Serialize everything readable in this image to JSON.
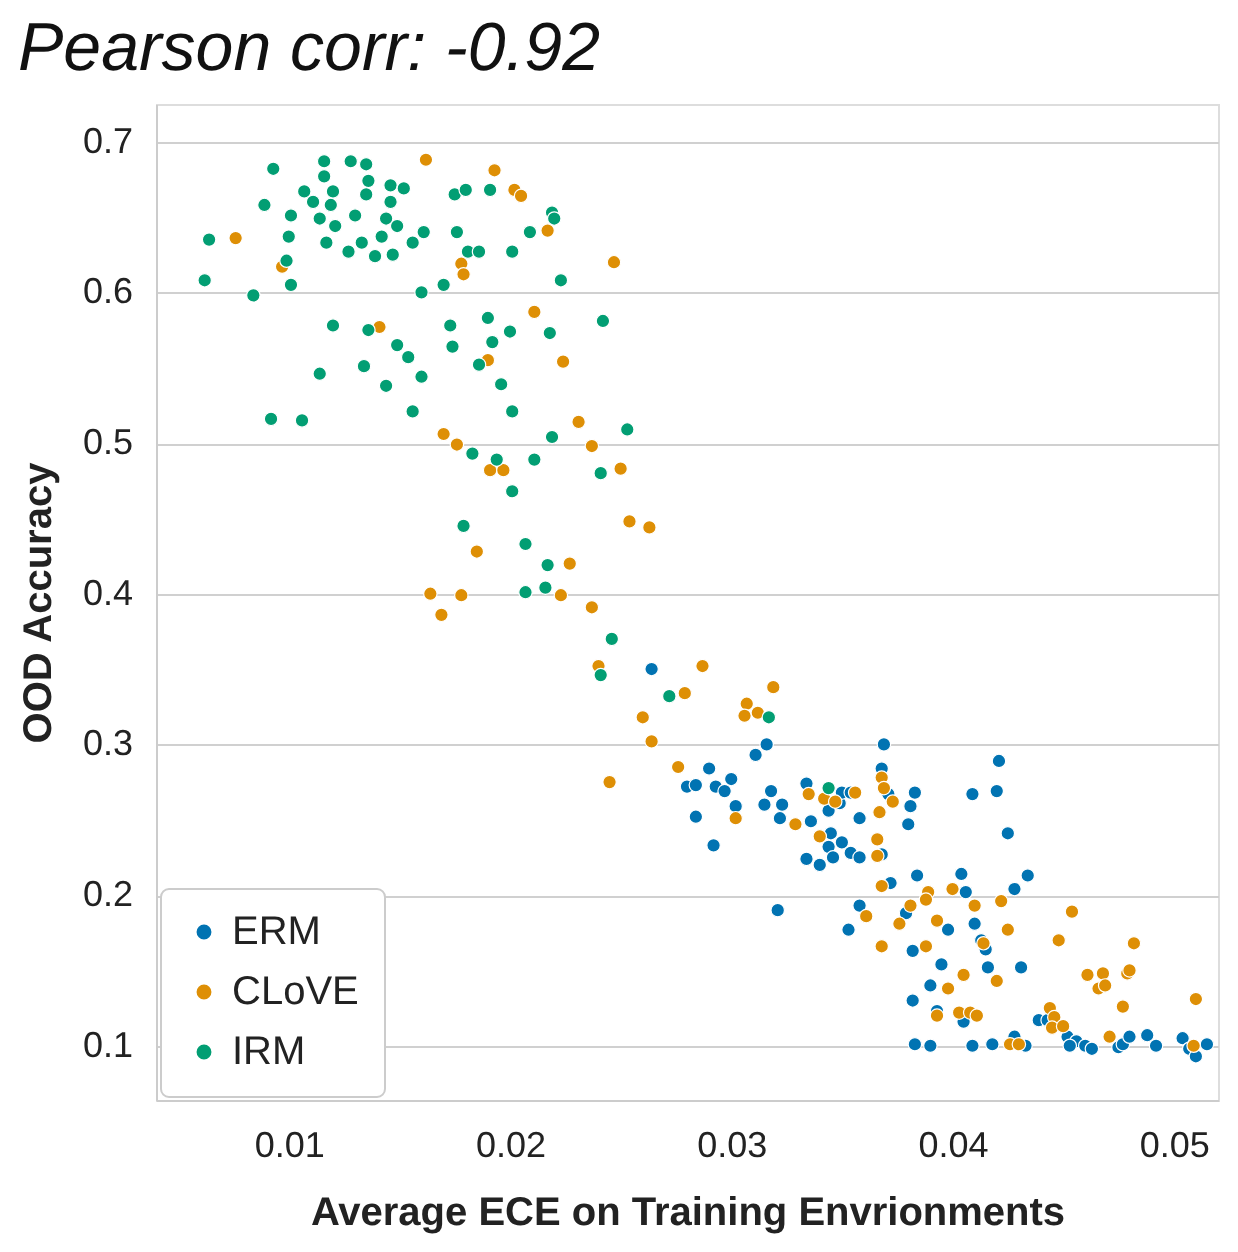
{
  "chart_data": {
    "type": "scatter",
    "title": "Pearson corr: -0.92",
    "xlabel": "Average ECE on Training Envrionments",
    "ylabel": "OOD Accuracy",
    "xlim": [
      0.004,
      0.052
    ],
    "xticks": [
      0.01,
      0.02,
      0.03,
      0.04,
      0.05
    ],
    "ylim": [
      0.064,
      0.725
    ],
    "yticks": [
      0.1,
      0.2,
      0.3,
      0.4,
      0.5,
      0.6,
      0.7
    ],
    "grid": "y",
    "legend": "bottom left",
    "marker": "circle",
    "series": [
      {
        "name": "ERM",
        "color": "#0173b2",
        "x": [
          0.0264,
          0.0316,
          0.0311,
          0.029,
          0.028,
          0.0284,
          0.0293,
          0.0297,
          0.03,
          0.0302,
          0.0284,
          0.0292,
          0.0315,
          0.0318,
          0.0323,
          0.0322,
          0.0334,
          0.0336,
          0.0344,
          0.0349,
          0.035,
          0.0354,
          0.0358,
          0.0345,
          0.0344,
          0.035,
          0.0346,
          0.0354,
          0.0358,
          0.0334,
          0.034,
          0.0321,
          0.0369,
          0.0368,
          0.0371,
          0.0383,
          0.0381,
          0.038,
          0.0368,
          0.0372,
          0.0384,
          0.0358,
          0.0353,
          0.0379,
          0.0382,
          0.0395,
          0.0398,
          0.039,
          0.0382,
          0.0393,
          0.0405,
          0.0404,
          0.0406,
          0.041,
          0.0413,
          0.0415,
          0.0416,
          0.0431,
          0.0409,
          0.042,
          0.0421,
          0.0425,
          0.0428,
          0.0434,
          0.0428,
          0.0383,
          0.039,
          0.0409,
          0.0418,
          0.0433,
          0.0439,
          0.0443,
          0.0452,
          0.0456,
          0.046,
          0.0463,
          0.0453,
          0.0475,
          0.0477,
          0.048,
          0.0488,
          0.0492,
          0.0504,
          0.0507,
          0.051,
          0.0515
        ],
        "values": [
          0.35,
          0.3,
          0.293,
          0.284,
          0.272,
          0.273,
          0.272,
          0.269,
          0.277,
          0.259,
          0.252,
          0.233,
          0.26,
          0.269,
          0.26,
          0.251,
          0.274,
          0.249,
          0.256,
          0.261,
          0.268,
          0.268,
          0.251,
          0.241,
          0.232,
          0.235,
          0.225,
          0.228,
          0.225,
          0.224,
          0.22,
          0.19,
          0.3,
          0.284,
          0.267,
          0.268,
          0.259,
          0.247,
          0.227,
          0.208,
          0.213,
          0.193,
          0.177,
          0.188,
          0.163,
          0.154,
          0.177,
          0.14,
          0.13,
          0.123,
          0.116,
          0.214,
          0.202,
          0.181,
          0.17,
          0.164,
          0.152,
          0.152,
          0.267,
          0.269,
          0.289,
          0.241,
          0.204,
          0.213,
          0.106,
          0.101,
          0.1,
          0.1,
          0.101,
          0.1,
          0.117,
          0.117,
          0.106,
          0.103,
          0.1,
          0.098,
          0.1,
          0.099,
          0.101,
          0.106,
          0.107,
          0.1,
          0.105,
          0.098,
          0.093,
          0.101
        ]
      },
      {
        "name": "CLoVE",
        "color": "#de8f05",
        "x": [
          0.0162,
          0.0193,
          0.0202,
          0.0205,
          0.0076,
          0.0217,
          0.0247,
          0.0178,
          0.0179,
          0.0097,
          0.0141,
          0.0211,
          0.0224,
          0.019,
          0.0231,
          0.0237,
          0.025,
          0.017,
          0.0176,
          0.0191,
          0.0197,
          0.0254,
          0.0263,
          0.0185,
          0.0227,
          0.0164,
          0.0178,
          0.0169,
          0.0223,
          0.0237,
          0.024,
          0.0287,
          0.0279,
          0.026,
          0.0264,
          0.0245,
          0.0307,
          0.0306,
          0.0312,
          0.0319,
          0.0276,
          0.0302,
          0.0335,
          0.0342,
          0.0347,
          0.0356,
          0.0329,
          0.034,
          0.0366,
          0.0367,
          0.0368,
          0.0369,
          0.0373,
          0.0366,
          0.0368,
          0.0381,
          0.0389,
          0.0388,
          0.04,
          0.041,
          0.0422,
          0.0361,
          0.0376,
          0.0388,
          0.0368,
          0.0393,
          0.0414,
          0.0405,
          0.0398,
          0.042,
          0.0425,
          0.0393,
          0.0403,
          0.0408,
          0.0411,
          0.0444,
          0.0446,
          0.0445,
          0.045,
          0.0426,
          0.043,
          0.0454,
          0.0448,
          0.0461,
          0.0468,
          0.0466,
          0.0469,
          0.0477,
          0.0479,
          0.048,
          0.0482,
          0.0471,
          0.051,
          0.0509
        ],
        "values": [
          0.688,
          0.681,
          0.668,
          0.664,
          0.636,
          0.641,
          0.62,
          0.619,
          0.612,
          0.617,
          0.577,
          0.587,
          0.554,
          0.555,
          0.514,
          0.498,
          0.483,
          0.506,
          0.499,
          0.482,
          0.482,
          0.448,
          0.444,
          0.428,
          0.42,
          0.4,
          0.399,
          0.386,
          0.399,
          0.391,
          0.352,
          0.352,
          0.334,
          0.318,
          0.302,
          0.275,
          0.327,
          0.319,
          0.321,
          0.338,
          0.285,
          0.251,
          0.267,
          0.264,
          0.262,
          0.268,
          0.247,
          0.239,
          0.237,
          0.255,
          0.278,
          0.271,
          0.262,
          0.226,
          0.206,
          0.193,
          0.202,
          0.197,
          0.204,
          0.193,
          0.196,
          0.186,
          0.181,
          0.166,
          0.166,
          0.183,
          0.168,
          0.147,
          0.138,
          0.143,
          0.177,
          0.12,
          0.122,
          0.122,
          0.12,
          0.125,
          0.119,
          0.112,
          0.113,
          0.101,
          0.101,
          0.189,
          0.17,
          0.147,
          0.148,
          0.138,
          0.14,
          0.126,
          0.148,
          0.15,
          0.168,
          0.106,
          0.131,
          0.1
        ]
      },
      {
        "name": "IRM",
        "color": "#029e73",
        "x": [
          0.0093,
          0.0089,
          0.0064,
          0.0062,
          0.0084,
          0.0101,
          0.01,
          0.0099,
          0.0101,
          0.0107,
          0.0116,
          0.0128,
          0.0135,
          0.0116,
          0.012,
          0.0111,
          0.0119,
          0.0114,
          0.0121,
          0.013,
          0.0135,
          0.0136,
          0.0146,
          0.0152,
          0.0146,
          0.0144,
          0.0149,
          0.0142,
          0.0133,
          0.0127,
          0.0139,
          0.0147,
          0.0156,
          0.0161,
          0.0117,
          0.0175,
          0.018,
          0.0191,
          0.0176,
          0.0181,
          0.0186,
          0.0201,
          0.0209,
          0.0219,
          0.022,
          0.017,
          0.016,
          0.0223,
          0.012,
          0.0136,
          0.0149,
          0.0154,
          0.0134,
          0.0114,
          0.0144,
          0.016,
          0.0173,
          0.019,
          0.02,
          0.0192,
          0.0174,
          0.0186,
          0.0196,
          0.0218,
          0.0242,
          0.0156,
          0.0201,
          0.0092,
          0.0106,
          0.0219,
          0.0253,
          0.0183,
          0.0194,
          0.0211,
          0.0241,
          0.0201,
          0.0179,
          0.0207,
          0.0217,
          0.0207,
          0.0216,
          0.0246,
          0.0241,
          0.0272,
          0.0317,
          0.0344
        ],
        "values": [
          0.682,
          0.658,
          0.635,
          0.608,
          0.598,
          0.651,
          0.637,
          0.621,
          0.605,
          0.667,
          0.687,
          0.687,
          0.685,
          0.677,
          0.667,
          0.66,
          0.658,
          0.649,
          0.644,
          0.651,
          0.665,
          0.674,
          0.671,
          0.669,
          0.66,
          0.649,
          0.644,
          0.637,
          0.633,
          0.627,
          0.624,
          0.625,
          0.633,
          0.64,
          0.633,
          0.665,
          0.668,
          0.668,
          0.64,
          0.627,
          0.627,
          0.627,
          0.64,
          0.653,
          0.649,
          0.605,
          0.6,
          0.608,
          0.578,
          0.575,
          0.565,
          0.557,
          0.551,
          0.546,
          0.538,
          0.544,
          0.578,
          0.583,
          0.574,
          0.567,
          0.564,
          0.552,
          0.539,
          0.573,
          0.581,
          0.521,
          0.521,
          0.516,
          0.515,
          0.504,
          0.509,
          0.493,
          0.489,
          0.489,
          0.48,
          0.468,
          0.445,
          0.433,
          0.419,
          0.401,
          0.404,
          0.37,
          0.346,
          0.332,
          0.318,
          0.271
        ]
      }
    ]
  }
}
